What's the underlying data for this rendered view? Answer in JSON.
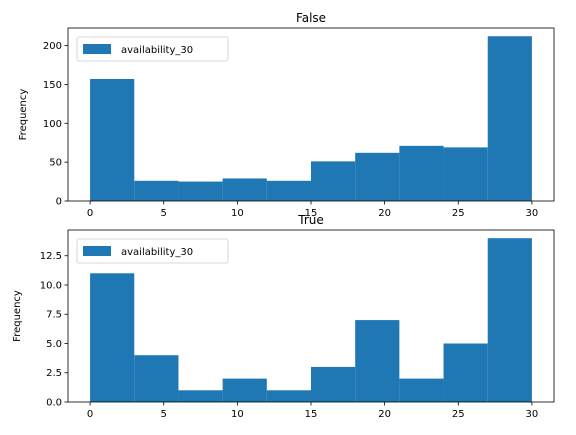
{
  "chart_data": [
    {
      "type": "bar",
      "title": "False",
      "xlabel": "",
      "ylabel": "Frequency",
      "bin_edges": [
        0,
        3,
        6,
        9,
        12,
        15,
        18,
        21,
        24,
        27,
        30
      ],
      "series": [
        {
          "name": "availability_30",
          "values": [
            157,
            26,
            25,
            29,
            26,
            51,
            62,
            71,
            69,
            212
          ]
        }
      ],
      "xlim": [
        -1.5,
        31.5
      ],
      "ylim": [
        0,
        222.6
      ],
      "xticks": [
        0,
        5,
        10,
        15,
        20,
        25,
        30
      ],
      "yticks": [
        0,
        50,
        100,
        150,
        200
      ],
      "ytick_labels": [
        "0",
        "50",
        "100",
        "150",
        "200"
      ],
      "legend_position": "upper-left",
      "grid": false,
      "color": "#1f77b4"
    },
    {
      "type": "bar",
      "title": "True",
      "xlabel": "",
      "ylabel": "Frequency",
      "bin_edges": [
        0,
        3,
        6,
        9,
        12,
        15,
        18,
        21,
        24,
        27,
        30
      ],
      "series": [
        {
          "name": "availability_30",
          "values": [
            11,
            4,
            1,
            2,
            1,
            3,
            7,
            2,
            5,
            14
          ]
        }
      ],
      "xlim": [
        -1.5,
        31.5
      ],
      "ylim": [
        0,
        14.7
      ],
      "xticks": [
        0,
        5,
        10,
        15,
        20,
        25,
        30
      ],
      "yticks": [
        0,
        2.5,
        5,
        7.5,
        10,
        12.5
      ],
      "ytick_labels": [
        "0.0",
        "2.5",
        "5.0",
        "7.5",
        "10.0",
        "12.5"
      ],
      "legend_position": "upper-left",
      "grid": false,
      "color": "#1f77b4"
    }
  ]
}
